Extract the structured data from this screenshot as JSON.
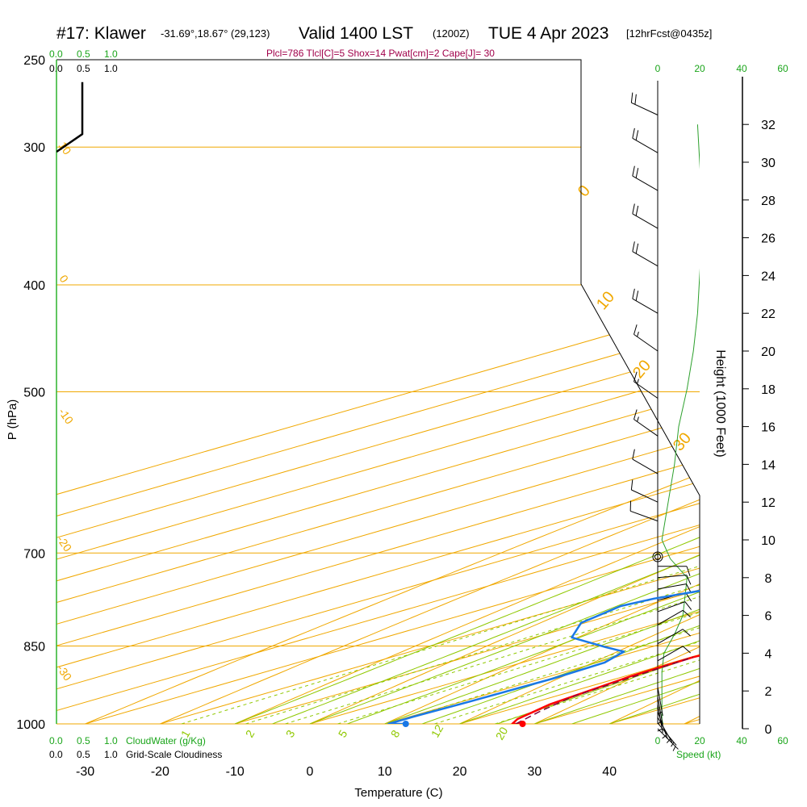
{
  "header": {
    "station": "#17: Klawer",
    "coords": "-31.69°,18.67° (29,123)",
    "valid": "Valid 1400 LST",
    "zulu": "(1200Z)",
    "date": "TUE 4 Apr 2023",
    "fcst": "[12hrFcst@0435z]",
    "indices": "Plcl=786 Tlcl[C]=5 Shox=14 Pwat[cm]=2 Cape[J]= 30"
  },
  "scales": {
    "cloudwater_ticks": [
      "0.0",
      "0.5",
      "1.0"
    ],
    "cloudiness_ticks": [
      "0.0",
      "0.5",
      "1.0"
    ],
    "cloudwater_label": "CloudWater (g/Kg)",
    "cloudiness_label": "Grid-Scale Cloudiness",
    "speed_ticks": [
      "0",
      "20",
      "40",
      "60"
    ],
    "speed_label": "Speed (kt)"
  },
  "axes": {
    "ylabel": "P (hPa)",
    "xlabel": "Temperature (C)",
    "rlabel": "Height (1000 Feet)",
    "pressure_ticks": [
      "250",
      "300",
      "400",
      "500",
      "700",
      "850",
      "1000"
    ],
    "temp_ticks": [
      "-30",
      "-20",
      "-10",
      "0",
      "10",
      "20",
      "30",
      "40"
    ],
    "height_ticks": [
      "0",
      "2",
      "4",
      "6",
      "8",
      "10",
      "12",
      "14",
      "16",
      "18",
      "20",
      "22",
      "24",
      "26",
      "28",
      "30",
      "32"
    ]
  },
  "line_labels": {
    "isotherm": [
      "0",
      "10",
      "20",
      "30"
    ],
    "dry_adiabat": [
      "10",
      "0",
      "-10",
      "-20",
      "-30"
    ],
    "mixing_ratio": [
      "1",
      "2",
      "3",
      "5",
      "8",
      "12",
      "20"
    ]
  },
  "chart_data": {
    "type": "line",
    "title": "#17: Klawer",
    "xlabel": "Temperature (C)",
    "ylabel": "P (hPa)",
    "xlim": [
      -35,
      52
    ],
    "ylim": [
      1000,
      250
    ],
    "yscale": "log",
    "series": [
      {
        "name": "Temperature",
        "color": "#ff0000",
        "points": [
          [
            28.4,
            1000
          ],
          [
            27.0,
            1000
          ],
          [
            25.5,
            990
          ],
          [
            23.0,
            960
          ],
          [
            20.8,
            905
          ],
          [
            20.3,
            870
          ],
          [
            20.8,
            860
          ],
          [
            22.0,
            850
          ],
          [
            23.0,
            815
          ],
          [
            23.3,
            790
          ],
          [
            22.5,
            755
          ],
          [
            21.5,
            715
          ],
          [
            20.8,
            680
          ],
          [
            20.0,
            650
          ],
          [
            19.7,
            620
          ],
          [
            19.2,
            590
          ],
          [
            17.5,
            550
          ],
          [
            14.2,
            510
          ],
          [
            10.5,
            470
          ],
          [
            7.0,
            430
          ],
          [
            3.5,
            400
          ],
          [
            -1.0,
            370
          ],
          [
            -5.5,
            345
          ],
          [
            -10.5,
            320
          ],
          [
            -14.5,
            300
          ],
          [
            -18.0,
            280
          ],
          [
            -20.5,
            265
          ]
        ]
      },
      {
        "name": "Dewpoint",
        "color": "#1a78e6",
        "points": [
          [
            12.8,
            1000
          ],
          [
            10.5,
            1000
          ],
          [
            10.5,
            985
          ],
          [
            11.0,
            955
          ],
          [
            11.5,
            910
          ],
          [
            11.0,
            880
          ],
          [
            8.5,
            860
          ],
          [
            4.0,
            852
          ],
          [
            -5.0,
            835
          ],
          [
            -10.5,
            810
          ],
          [
            -13.0,
            782
          ],
          [
            -12.0,
            770
          ],
          [
            -9.0,
            755
          ],
          [
            -5.5,
            737
          ],
          [
            -3.0,
            712
          ],
          [
            -2.0,
            690
          ],
          [
            -2.0,
            670
          ],
          [
            -3.5,
            645
          ],
          [
            -7.0,
            610
          ],
          [
            -11.0,
            580
          ],
          [
            -13.5,
            550
          ],
          [
            -14.0,
            520
          ],
          [
            -13.5,
            505
          ],
          [
            -11.0,
            480
          ],
          [
            -10.0,
            445
          ],
          [
            -10.5,
            430
          ],
          [
            -13.0,
            405
          ],
          [
            -17.0,
            375
          ],
          [
            -19.0,
            355
          ],
          [
            -17.0,
            340
          ],
          [
            -10.0,
            315
          ],
          [
            -5.5,
            300
          ],
          [
            -6.0,
            285
          ],
          [
            -7.5,
            275
          ],
          [
            -9.5,
            265
          ]
        ]
      },
      {
        "name": "Parcel",
        "color": "#800040",
        "dash": true,
        "points": [
          [
            27.5,
            1000
          ],
          [
            25.0,
            975
          ],
          [
            22.5,
            945
          ],
          [
            20.3,
            870
          ]
        ]
      },
      {
        "name": "Cloud",
        "color": "#000000",
        "points": [
          [
            -35,
            303
          ],
          [
            -31.5,
            292
          ],
          [
            -31.5,
            262
          ]
        ]
      }
    ],
    "markers": [
      {
        "name": "Surface temperature",
        "x": 28.4,
        "p": 1000,
        "color": "#ff0000"
      },
      {
        "name": "Surface dewpoint",
        "x": 12.8,
        "p": 1000,
        "color": "#1a78e6"
      }
    ],
    "wind_speed_profile": {
      "unit": "kt",
      "height_kft": [
        0,
        0.5,
        1,
        2,
        3,
        4,
        5,
        6,
        7,
        8,
        9,
        10,
        12,
        14,
        16,
        18,
        20,
        22,
        24,
        26,
        28,
        30,
        32
      ],
      "speed": [
        3,
        2,
        2,
        2,
        2,
        3,
        8,
        12,
        13,
        14,
        6,
        2,
        5,
        8,
        10,
        14,
        17,
        19,
        20,
        21,
        21,
        20,
        19
      ]
    },
    "wind_barbs": [
      {
        "height_kft": 0.0,
        "speed": 5,
        "dir": 135
      },
      {
        "height_kft": 0.3,
        "speed": 5,
        "dir": 140
      },
      {
        "height_kft": 0.6,
        "speed": 5,
        "dir": 150
      },
      {
        "height_kft": 0.9,
        "speed": 5,
        "dir": 160
      },
      {
        "height_kft": 1.3,
        "speed": 5,
        "dir": 170
      },
      {
        "height_kft": 1.7,
        "speed": 5,
        "dir": 170
      },
      {
        "height_kft": 2.2,
        "speed": 5,
        "dir": 170
      },
      {
        "height_kft": 3.6,
        "speed": 10,
        "dir": 60
      },
      {
        "height_kft": 4.5,
        "speed": 10,
        "dir": 60
      },
      {
        "height_kft": 5.5,
        "speed": 10,
        "dir": 60
      },
      {
        "height_kft": 6.2,
        "speed": 10,
        "dir": 70
      },
      {
        "height_kft": 6.8,
        "speed": 10,
        "dir": 75
      },
      {
        "height_kft": 7.4,
        "speed": 10,
        "dir": 80
      },
      {
        "height_kft": 8.0,
        "speed": 10,
        "dir": 85
      },
      {
        "height_kft": 8.6,
        "speed": 10,
        "dir": 90
      },
      {
        "height_kft": 11.0,
        "speed": 10,
        "dir": 290
      },
      {
        "height_kft": 12.0,
        "speed": 10,
        "dir": 295
      },
      {
        "height_kft": 13.5,
        "speed": 10,
        "dir": 300
      },
      {
        "height_kft": 15.5,
        "speed": 15,
        "dir": 305
      },
      {
        "height_kft": 17.5,
        "speed": 15,
        "dir": 305
      },
      {
        "height_kft": 20.0,
        "speed": 15,
        "dir": 305
      },
      {
        "height_kft": 22.0,
        "speed": 20,
        "dir": 300
      },
      {
        "height_kft": 24.5,
        "speed": 20,
        "dir": 300
      },
      {
        "height_kft": 26.5,
        "speed": 20,
        "dir": 300
      },
      {
        "height_kft": 28.5,
        "speed": 20,
        "dir": 300
      },
      {
        "height_kft": 30.5,
        "speed": 20,
        "dir": 300
      },
      {
        "height_kft": 32.5,
        "speed": 20,
        "dir": 295
      }
    ]
  }
}
